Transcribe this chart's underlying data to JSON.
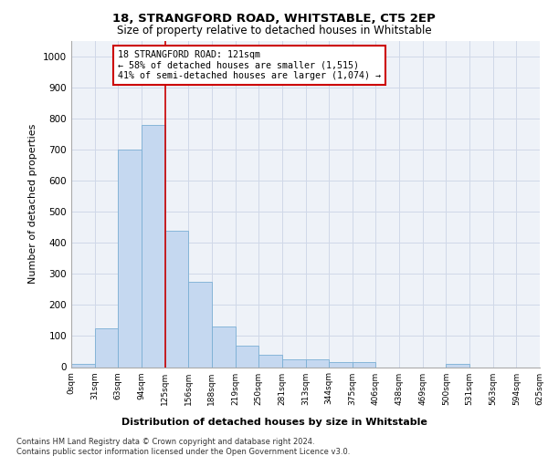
{
  "title1": "18, STRANGFORD ROAD, WHITSTABLE, CT5 2EP",
  "title2": "Size of property relative to detached houses in Whitstable",
  "xlabel": "Distribution of detached houses by size in Whitstable",
  "ylabel": "Number of detached properties",
  "bin_labels": [
    "0sqm",
    "31sqm",
    "63sqm",
    "94sqm",
    "125sqm",
    "156sqm",
    "188sqm",
    "219sqm",
    "250sqm",
    "281sqm",
    "313sqm",
    "344sqm",
    "375sqm",
    "406sqm",
    "438sqm",
    "469sqm",
    "500sqm",
    "531sqm",
    "563sqm",
    "594sqm",
    "625sqm"
  ],
  "bar_values": [
    10,
    125,
    700,
    780,
    440,
    275,
    130,
    70,
    40,
    25,
    25,
    15,
    15,
    0,
    0,
    0,
    10,
    0,
    0,
    0
  ],
  "bar_color": "#c5d8f0",
  "bar_edge_color": "#7aafd4",
  "vline_x_index": 4,
  "vline_color": "#cc0000",
  "annotation_text": "18 STRANGFORD ROAD: 121sqm\n← 58% of detached houses are smaller (1,515)\n41% of semi-detached houses are larger (1,074) →",
  "annotation_box_color": "#ffffff",
  "annotation_box_edge": "#cc0000",
  "ylim": [
    0,
    1050
  ],
  "yticks": [
    0,
    100,
    200,
    300,
    400,
    500,
    600,
    700,
    800,
    900,
    1000
  ],
  "footer1": "Contains HM Land Registry data © Crown copyright and database right 2024.",
  "footer2": "Contains public sector information licensed under the Open Government Licence v3.0.",
  "grid_color": "#d0d8e8",
  "bg_color": "#eef2f8"
}
